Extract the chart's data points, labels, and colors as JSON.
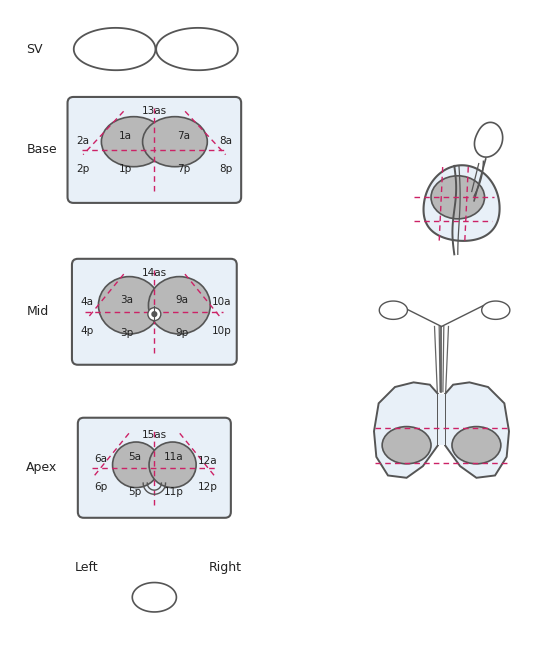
{
  "bg_color": "#ffffff",
  "outline_color": "#555555",
  "gray_fill": "#b8b8b8",
  "light_fill": "#e8f0f8",
  "dashed_color": "#cc2266",
  "text_color": "#222222",
  "sv_label": "SV",
  "base_label": "Base",
  "mid_label": "Mid",
  "apex_label": "Apex",
  "left_label": "Left",
  "right_label": "Right",
  "base_segments": [
    "13as",
    "1a",
    "7a",
    "2a",
    "8a",
    "2p",
    "1p",
    "7p",
    "8p"
  ],
  "mid_segments": [
    "14as",
    "3a",
    "9a",
    "4a",
    "10a",
    "4p",
    "3p",
    "9p",
    "10p"
  ],
  "apex_segments": [
    "15as",
    "5a",
    "11a",
    "6a",
    "12a",
    "6p",
    "5p",
    "11p",
    "12p"
  ]
}
